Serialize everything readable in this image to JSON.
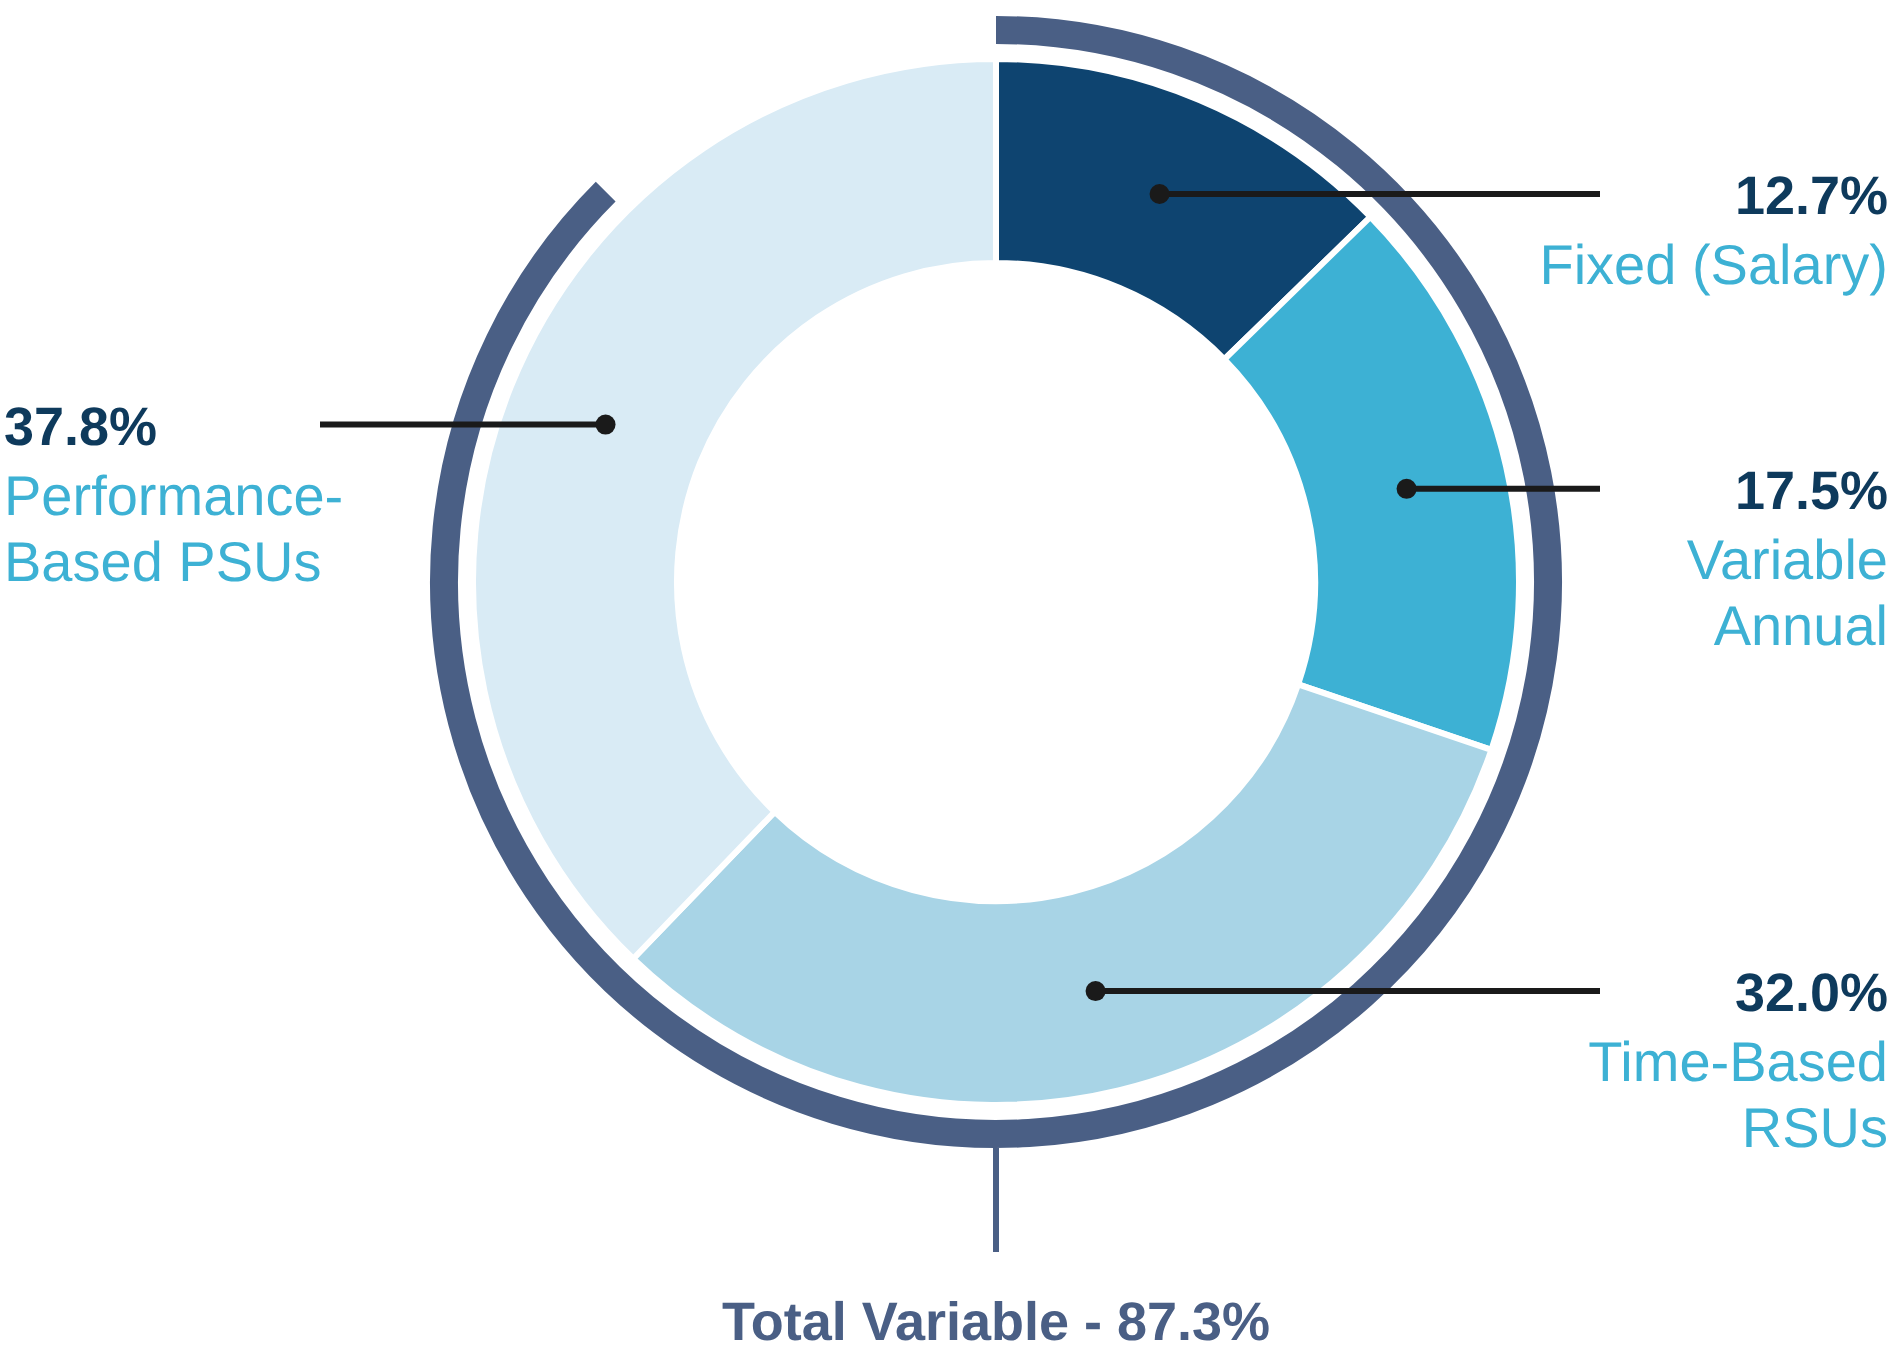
{
  "chart_data": {
    "type": "donut",
    "categories": [
      "Fixed (Salary)",
      "Variable Annual",
      "Time-Based RSUs",
      "Performance-Based PSUs"
    ],
    "values": [
      12.7,
      17.5,
      32.0,
      37.8
    ],
    "colors": [
      "#0e4470",
      "#3db1d4",
      "#a8d4e6",
      "#d9ebf5"
    ],
    "value_labels": [
      "12.7%",
      "17.5%",
      "32.0%",
      "37.8%"
    ],
    "annotations": [
      "Total Variable - 87.3%"
    ],
    "legend": false
  }
}
